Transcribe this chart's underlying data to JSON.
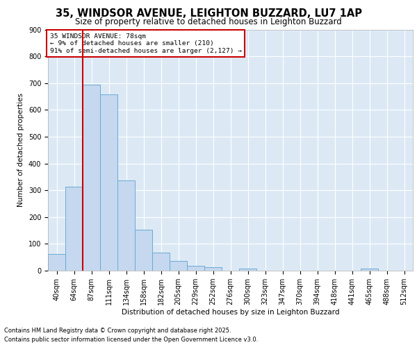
{
  "title": "35, WINDSOR AVENUE, LEIGHTON BUZZARD, LU7 1AP",
  "subtitle": "Size of property relative to detached houses in Leighton Buzzard",
  "xlabel": "Distribution of detached houses by size in Leighton Buzzard",
  "ylabel": "Number of detached properties",
  "annotation_title": "35 WINDSOR AVENUE: 78sqm",
  "annotation_line1": "← 9% of detached houses are smaller (210)",
  "annotation_line2": "91% of semi-detached houses are larger (2,127) →",
  "footer_line1": "Contains HM Land Registry data © Crown copyright and database right 2025.",
  "footer_line2": "Contains public sector information licensed under the Open Government Licence v3.0.",
  "bar_labels": [
    "40sqm",
    "64sqm",
    "87sqm",
    "111sqm",
    "134sqm",
    "158sqm",
    "182sqm",
    "205sqm",
    "229sqm",
    "252sqm",
    "276sqm",
    "300sqm",
    "323sqm",
    "347sqm",
    "370sqm",
    "394sqm",
    "418sqm",
    "441sqm",
    "465sqm",
    "488sqm",
    "512sqm"
  ],
  "bar_values": [
    62,
    313,
    693,
    657,
    337,
    152,
    68,
    35,
    18,
    13,
    0,
    8,
    0,
    0,
    0,
    0,
    0,
    0,
    8,
    0,
    0
  ],
  "bar_color": "#c5d8ef",
  "bar_edge_color": "#6aaad4",
  "vline_x": 1.5,
  "vline_color": "#cc0000",
  "annotation_box_color": "#cc0000",
  "fig_bg_color": "#ffffff",
  "plot_bg_color": "#dce9f5",
  "ylim": [
    0,
    900
  ],
  "yticks": [
    0,
    100,
    200,
    300,
    400,
    500,
    600,
    700,
    800,
    900
  ],
  "title_fontsize": 10.5,
  "subtitle_fontsize": 8.5,
  "ylabel_fontsize": 7.5,
  "xlabel_fontsize": 7.5,
  "tick_fontsize": 7,
  "annotation_fontsize": 6.8,
  "footer_fontsize": 6
}
